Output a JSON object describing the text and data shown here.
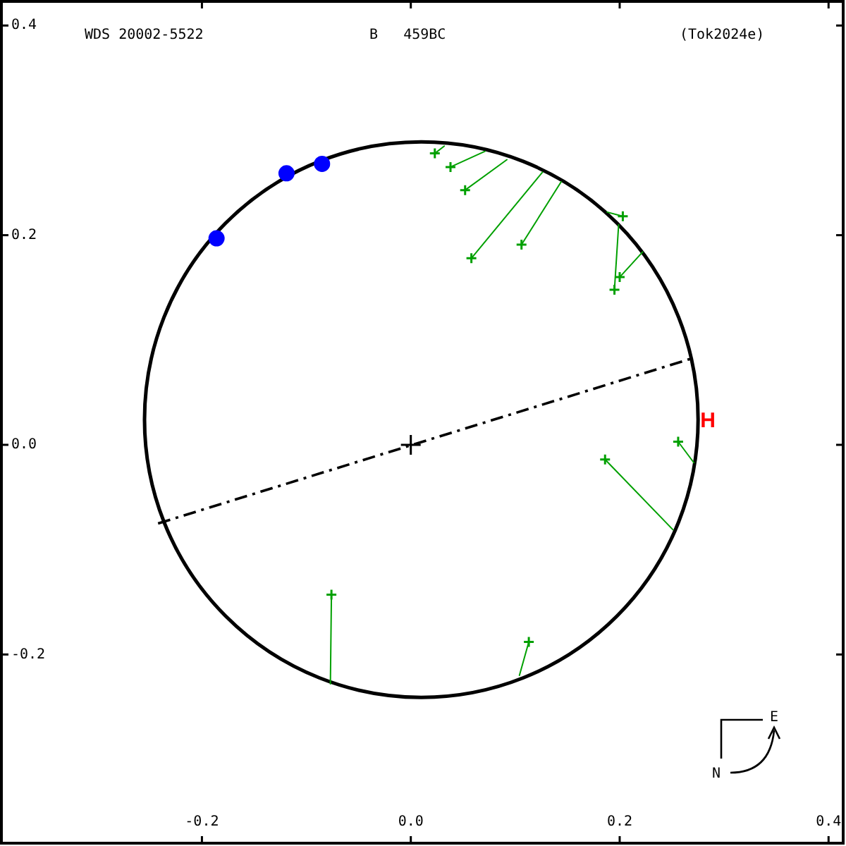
{
  "chart_data": {
    "type": "scatter",
    "title": "WDS 20002-5522",
    "subtitle": "B   459BC",
    "annotations": [
      "(Tok2024e)",
      "N",
      "E",
      "H"
    ],
    "xlim": [
      -0.392,
      0.414
    ],
    "ylim": [
      -0.38,
      0.423
    ],
    "xticks": [
      -0.2,
      {
        "value": 0,
        "label": "0.0"
      },
      0.2,
      0.4
    ],
    "yticks": [
      -0.2,
      {
        "value": 0,
        "label": "0.0"
      },
      0.2,
      0.4
    ],
    "series": [
      {
        "type": "line",
        "color": "#000000",
        "marker": "none",
        "line_style": "dashdot",
        "x": [
          -0.242,
          0.271
        ],
        "values": [
          -0.075,
          0.083
        ]
      },
      {
        "type": "scatter",
        "color": "#00a000",
        "marker": "cross",
        "x": [
          0.023,
          0.038,
          0.052,
          0.058,
          0.106,
          0.203,
          0.2,
          0.195,
          0.186,
          0.256,
          -0.076,
          0.113
        ],
        "values": [
          0.278,
          0.265,
          0.243,
          0.178,
          0.191,
          0.218,
          0.16,
          0.148,
          -0.014,
          0.003,
          -0.143,
          -0.188
        ]
      },
      {
        "type": "scatter",
        "color": "#0000ff",
        "marker": "circle",
        "x": [
          -0.186,
          -0.119,
          -0.085
        ],
        "values": [
          0.197,
          0.259,
          0.268
        ]
      },
      {
        "type": "scatter",
        "color": "#000000",
        "marker": "cross",
        "x": [
          0
        ],
        "values": [
          0
        ]
      },
      {
        "type": "line",
        "color": "#00a000",
        "marker": "none",
        "line_style": "solid",
        "x": [
          0.023,
          0.032
        ],
        "values": [
          0.278,
          0.285
        ]
      },
      {
        "type": "line",
        "color": "#00a000",
        "marker": "none",
        "line_style": "solid",
        "x": [
          0.038,
          0.071
        ],
        "values": [
          0.265,
          0.28
        ]
      },
      {
        "type": "line",
        "color": "#00a000",
        "marker": "none",
        "line_style": "solid",
        "x": [
          0.052,
          0.092
        ],
        "values": [
          0.243,
          0.272
        ]
      },
      {
        "type": "line",
        "color": "#00a000",
        "marker": "none",
        "line_style": "solid",
        "x": [
          0.058,
          0.126
        ],
        "values": [
          0.178,
          0.26
        ]
      },
      {
        "type": "line",
        "color": "#00a000",
        "marker": "none",
        "line_style": "solid",
        "x": [
          0.106,
          0.144
        ],
        "values": [
          0.191,
          0.251
        ]
      },
      {
        "type": "line",
        "color": "#00a000",
        "marker": "none",
        "line_style": "solid",
        "x": [
          0.203,
          0.188
        ],
        "values": [
          0.218,
          0.222
        ]
      },
      {
        "type": "line",
        "color": "#00a000",
        "marker": "none",
        "line_style": "solid",
        "x": [
          0.2,
          0.222
        ],
        "values": [
          0.16,
          0.184
        ]
      },
      {
        "type": "line",
        "color": "#00a000",
        "marker": "none",
        "line_style": "solid",
        "x": [
          0.195,
          0.199
        ],
        "values": [
          0.148,
          0.21
        ]
      },
      {
        "type": "line",
        "color": "#00a000",
        "marker": "none",
        "line_style": "solid",
        "x": [
          0.186,
          0.251
        ],
        "values": [
          -0.014,
          -0.081
        ]
      },
      {
        "type": "line",
        "color": "#00a000",
        "marker": "none",
        "line_style": "solid",
        "x": [
          0.256,
          0.271
        ],
        "values": [
          0.003,
          -0.017
        ]
      },
      {
        "type": "line",
        "color": "#00a000",
        "marker": "none",
        "line_style": "solid",
        "x": [
          -0.076,
          -0.077
        ],
        "values": [
          -0.143,
          -0.228
        ]
      },
      {
        "type": "line",
        "color": "#00a000",
        "marker": "none",
        "line_style": "solid",
        "x": [
          0.113,
          0.104
        ],
        "values": [
          -0.188,
          -0.22
        ]
      }
    ]
  }
}
